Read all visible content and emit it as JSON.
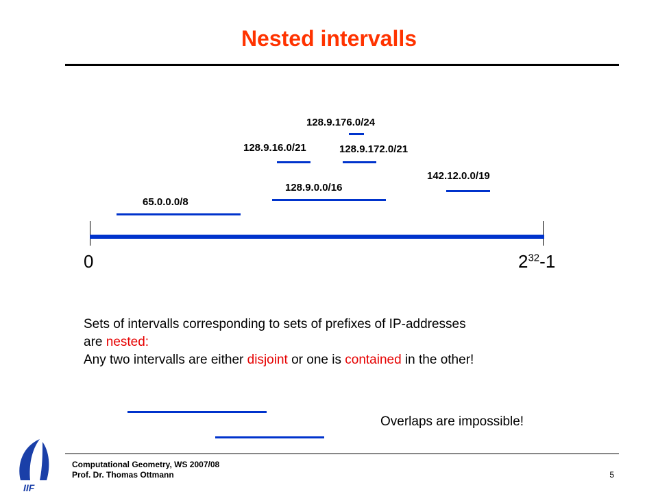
{
  "slide": {
    "title": "Nested intervalls",
    "axis": {
      "start_label": "0",
      "end_base": "2",
      "end_exponent": "32",
      "end_suffix": "-1"
    },
    "intervals": [
      {
        "label": "128.9.176.0/24"
      },
      {
        "label": "128.9.16.0/21"
      },
      {
        "label": "128.9.172.0/21"
      },
      {
        "label": "142.12.0.0/19"
      },
      {
        "label": "128.9.0.0/16"
      },
      {
        "label": "65.0.0.0/8"
      }
    ],
    "body": {
      "line1": "Sets of intervalls corresponding to sets of prefixes of IP-addresses",
      "line2_pre": "are ",
      "line2_red": "nested:",
      "line3_a": "Any two intervalls are either ",
      "line3_red1": "disjoint",
      "line3_b": " or one is ",
      "line3_red2": "contained",
      "line3_c": " in the other!"
    },
    "overlap_text": "Overlaps are impossible!",
    "footer": {
      "line1": "Computational Geometry, WS 2007/08",
      "line2": "Prof. Dr. Thomas Ottmann",
      "page": "5"
    },
    "logo_text": "IIF",
    "colors": {
      "title": "#ff3300",
      "interval": "#0033cc",
      "emphasis": "#e60000",
      "logo": "#1a3fa8"
    }
  }
}
